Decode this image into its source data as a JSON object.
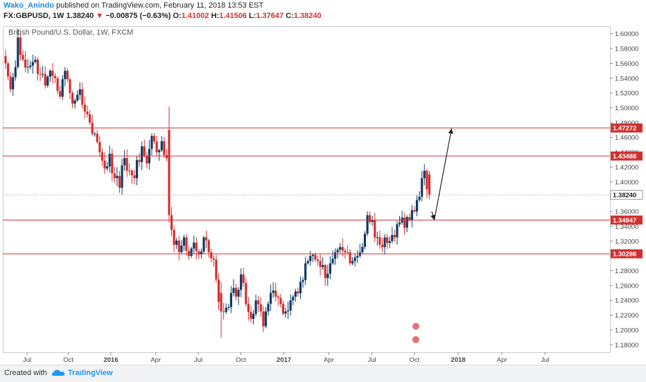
{
  "header": {
    "author": "Wako_Anindo",
    "published_text": "published on TradingView.com, February 11, 2018 13:53 EST",
    "symbol": "FX:GBPUSD, 1W",
    "last": "1.38240",
    "change": "−0.00875 (−0.63%)",
    "o_label": "O:",
    "o_val": "1.41002",
    "h_label": "H:",
    "h_val": "1.41506",
    "l_label": "L:",
    "l_val": "1.37647",
    "c_label": "C:",
    "c_val": "1.38240"
  },
  "footer": {
    "created": "Created with",
    "brand": "TradingView"
  },
  "chart_data": {
    "type": "candlestick",
    "title": "British Pound/U.S. Dollar, 1W, FXCM",
    "ylim": [
      1.17,
      1.61
    ],
    "yticks": [
      1.18,
      1.2,
      1.22,
      1.24,
      1.26,
      1.28,
      1.3,
      1.32,
      1.34,
      1.36,
      1.38,
      1.4,
      1.42,
      1.44,
      1.46,
      1.48,
      1.5,
      1.52,
      1.54,
      1.56,
      1.58,
      1.6
    ],
    "xticks": [
      {
        "label": "Jul",
        "t": 0.04
      },
      {
        "label": "Oct",
        "t": 0.108
      },
      {
        "label": "2016",
        "t": 0.178
      },
      {
        "label": "Apr",
        "t": 0.252
      },
      {
        "label": "Jul",
        "t": 0.322
      },
      {
        "label": "Oct",
        "t": 0.392
      },
      {
        "label": "2017",
        "t": 0.463
      },
      {
        "label": "Apr",
        "t": 0.537
      },
      {
        "label": "Jul",
        "t": 0.608
      },
      {
        "label": "Oct",
        "t": 0.678
      },
      {
        "label": "2018",
        "t": 0.75
      },
      {
        "label": "Apr",
        "t": 0.822
      },
      {
        "label": "Jul",
        "t": 0.893
      }
    ],
    "hlines": [
      {
        "value": 1.47272,
        "label": "1.47272",
        "color": "#d32f2f"
      },
      {
        "value": 1.43488,
        "label": "1.43488",
        "color": "#d32f2f"
      },
      {
        "value": 1.34847,
        "label": "1.34847",
        "color": "#d32f2f"
      },
      {
        "value": 1.30286,
        "label": "1.30286",
        "color": "#d32f2f"
      }
    ],
    "last_price": {
      "value": 1.3824,
      "label": "1.38240"
    },
    "up_color": "#0d3b66",
    "down_color": "#d32f2f",
    "anchors": [
      [
        0,
        1.56
      ],
      [
        2,
        1.525
      ],
      [
        4,
        1.555
      ],
      [
        5,
        1.595
      ],
      [
        7,
        1.565
      ],
      [
        9,
        1.555
      ],
      [
        12,
        1.565
      ],
      [
        14,
        1.545
      ],
      [
        16,
        1.53
      ],
      [
        18,
        1.55
      ],
      [
        20,
        1.54
      ],
      [
        22,
        1.515
      ],
      [
        24,
        1.55
      ],
      [
        26,
        1.52
      ],
      [
        28,
        1.51
      ],
      [
        30,
        1.525
      ],
      [
        32,
        1.495
      ],
      [
        34,
        1.48
      ],
      [
        36,
        1.465
      ],
      [
        38,
        1.44
      ],
      [
        40,
        1.418
      ],
      [
        42,
        1.438
      ],
      [
        44,
        1.405
      ],
      [
        46,
        1.392
      ],
      [
        48,
        1.432
      ],
      [
        50,
        1.415
      ],
      [
        52,
        1.405
      ],
      [
        55,
        1.448
      ],
      [
        57,
        1.425
      ],
      [
        59,
        1.462
      ],
      [
        61,
        1.44
      ],
      [
        63,
        1.455
      ],
      [
        65,
        1.432
      ],
      [
        66,
        1.37
      ],
      [
        67,
        1.335
      ],
      [
        68,
        1.315
      ],
      [
        70,
        1.305
      ],
      [
        72,
        1.325
      ],
      [
        74,
        1.3
      ],
      [
        76,
        1.318
      ],
      [
        78,
        1.302
      ],
      [
        80,
        1.325
      ],
      [
        82,
        1.305
      ],
      [
        84,
        1.295
      ],
      [
        85,
        1.268
      ],
      [
        86,
        1.238
      ],
      [
        87,
        1.225
      ],
      [
        89,
        1.23
      ],
      [
        91,
        1.25
      ],
      [
        93,
        1.245
      ],
      [
        95,
        1.275
      ],
      [
        97,
        1.235
      ],
      [
        99,
        1.215
      ],
      [
        101,
        1.24
      ],
      [
        103,
        1.225
      ],
      [
        104,
        1.205
      ],
      [
        105,
        1.225
      ],
      [
        107,
        1.25
      ],
      [
        109,
        1.245
      ],
      [
        111,
        1.235
      ],
      [
        113,
        1.225
      ],
      [
        115,
        1.24
      ],
      [
        117,
        1.252
      ],
      [
        119,
        1.265
      ],
      [
        121,
        1.29
      ],
      [
        123,
        1.3
      ],
      [
        125,
        1.295
      ],
      [
        127,
        1.285
      ],
      [
        129,
        1.27
      ],
      [
        131,
        1.29
      ],
      [
        133,
        1.305
      ],
      [
        135,
        1.312
      ],
      [
        137,
        1.305
      ],
      [
        139,
        1.29
      ],
      [
        141,
        1.298
      ],
      [
        143,
        1.305
      ],
      [
        145,
        1.33
      ],
      [
        146,
        1.355
      ],
      [
        148,
        1.348
      ],
      [
        149,
        1.325
      ],
      [
        151,
        1.315
      ],
      [
        153,
        1.325
      ],
      [
        155,
        1.32
      ],
      [
        157,
        1.325
      ],
      [
        159,
        1.345
      ],
      [
        161,
        1.338
      ],
      [
        163,
        1.348
      ],
      [
        165,
        1.36
      ],
      [
        167,
        1.38
      ],
      [
        168,
        1.405
      ],
      [
        169,
        1.415
      ],
      [
        170,
        1.39
      ],
      [
        171,
        1.3824
      ]
    ],
    "annotations": [
      {
        "type": "arrow",
        "from": [
          172,
          1.36
        ],
        "to": [
          173,
          1.34847
        ]
      },
      {
        "type": "arrow",
        "from": [
          173,
          1.34847
        ],
        "to": [
          180,
          1.472
        ]
      }
    ]
  }
}
